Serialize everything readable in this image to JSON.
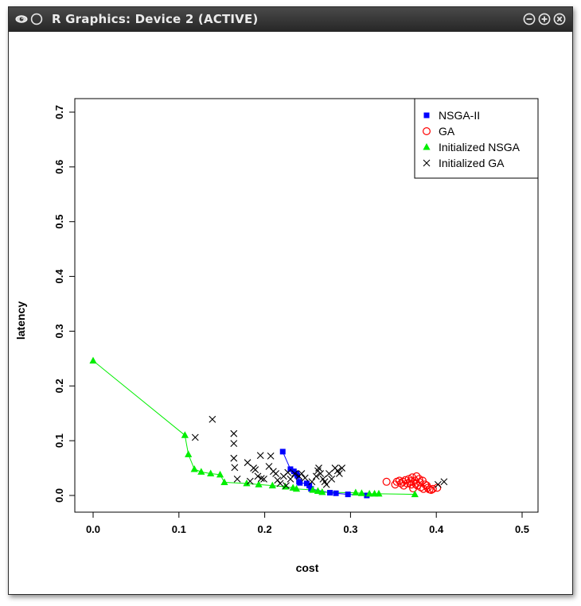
{
  "window": {
    "title": "R Graphics: Device 2 (ACTIVE)",
    "icons": [
      "app-eye-icon",
      "circle-icon",
      "minimize-icon",
      "maximize-icon",
      "close-icon"
    ]
  },
  "chart_data": {
    "type": "scatter",
    "title": "",
    "xlabel": "cost",
    "ylabel": "latency",
    "xlim": [
      0.0,
      0.5
    ],
    "ylim": [
      0.0,
      0.7
    ],
    "x_ticks": [
      "0.0",
      "0.1",
      "0.2",
      "0.3",
      "0.4",
      "0.5"
    ],
    "y_ticks": [
      "0.0",
      "0.1",
      "0.2",
      "0.3",
      "0.4",
      "0.5",
      "0.6",
      "0.7"
    ],
    "grid": false,
    "legend_position": "top-right",
    "series": [
      {
        "name": "NSGA-II",
        "marker": "filled-square",
        "color": "#0000ff",
        "connected": true,
        "points": [
          [
            0.221,
            0.08
          ],
          [
            0.23,
            0.048
          ],
          [
            0.234,
            0.044
          ],
          [
            0.237,
            0.04
          ],
          [
            0.238,
            0.036
          ],
          [
            0.24,
            0.025
          ],
          [
            0.241,
            0.023
          ],
          [
            0.249,
            0.022
          ],
          [
            0.252,
            0.018
          ],
          [
            0.254,
            0.012
          ],
          [
            0.276,
            0.005
          ],
          [
            0.283,
            0.004
          ],
          [
            0.297,
            0.002
          ],
          [
            0.319,
            0.0
          ]
        ]
      },
      {
        "name": "GA",
        "marker": "open-circle",
        "color": "#ff0000",
        "connected": false,
        "points": [
          [
            0.342,
            0.025
          ],
          [
            0.352,
            0.02
          ],
          [
            0.354,
            0.025
          ],
          [
            0.357,
            0.027
          ],
          [
            0.359,
            0.022
          ],
          [
            0.361,
            0.025
          ],
          [
            0.362,
            0.018
          ],
          [
            0.364,
            0.028
          ],
          [
            0.366,
            0.022
          ],
          [
            0.368,
            0.03
          ],
          [
            0.37,
            0.026
          ],
          [
            0.371,
            0.02
          ],
          [
            0.372,
            0.033
          ],
          [
            0.373,
            0.013
          ],
          [
            0.375,
            0.027
          ],
          [
            0.376,
            0.021
          ],
          [
            0.377,
            0.035
          ],
          [
            0.378,
            0.018
          ],
          [
            0.38,
            0.03
          ],
          [
            0.381,
            0.024
          ],
          [
            0.382,
            0.015
          ],
          [
            0.384,
            0.027
          ],
          [
            0.385,
            0.012
          ],
          [
            0.387,
            0.02
          ],
          [
            0.389,
            0.018
          ],
          [
            0.39,
            0.014
          ],
          [
            0.392,
            0.011
          ],
          [
            0.394,
            0.01
          ],
          [
            0.396,
            0.012
          ],
          [
            0.401,
            0.014
          ]
        ]
      },
      {
        "name": "Initialized NSGA",
        "marker": "filled-triangle",
        "color": "#00ee00",
        "connected": true,
        "points": [
          [
            0.0,
            0.246
          ],
          [
            0.107,
            0.11
          ],
          [
            0.111,
            0.075
          ],
          [
            0.118,
            0.048
          ],
          [
            0.126,
            0.043
          ],
          [
            0.137,
            0.04
          ],
          [
            0.148,
            0.038
          ],
          [
            0.153,
            0.024
          ],
          [
            0.179,
            0.022
          ],
          [
            0.193,
            0.02
          ],
          [
            0.209,
            0.018
          ],
          [
            0.224,
            0.016
          ],
          [
            0.233,
            0.014
          ],
          [
            0.237,
            0.012
          ],
          [
            0.256,
            0.01
          ],
          [
            0.262,
            0.008
          ],
          [
            0.267,
            0.006
          ],
          [
            0.306,
            0.005
          ],
          [
            0.313,
            0.004
          ],
          [
            0.322,
            0.003
          ],
          [
            0.328,
            0.003
          ],
          [
            0.333,
            0.003
          ],
          [
            0.375,
            0.002
          ]
        ]
      },
      {
        "name": "Initialized GA",
        "marker": "x",
        "color": "#000000",
        "connected": false,
        "points": [
          [
            0.119,
            0.106
          ],
          [
            0.139,
            0.139
          ],
          [
            0.164,
            0.113
          ],
          [
            0.164,
            0.095
          ],
          [
            0.164,
            0.068
          ],
          [
            0.165,
            0.051
          ],
          [
            0.168,
            0.03
          ],
          [
            0.18,
            0.06
          ],
          [
            0.183,
            0.026
          ],
          [
            0.187,
            0.05
          ],
          [
            0.189,
            0.047
          ],
          [
            0.192,
            0.035
          ],
          [
            0.195,
            0.073
          ],
          [
            0.196,
            0.031
          ],
          [
            0.199,
            0.03
          ],
          [
            0.205,
            0.053
          ],
          [
            0.207,
            0.072
          ],
          [
            0.21,
            0.044
          ],
          [
            0.213,
            0.04
          ],
          [
            0.215,
            0.028
          ],
          [
            0.218,
            0.022
          ],
          [
            0.222,
            0.035
          ],
          [
            0.225,
            0.018
          ],
          [
            0.227,
            0.042
          ],
          [
            0.23,
            0.03
          ],
          [
            0.235,
            0.04
          ],
          [
            0.24,
            0.035
          ],
          [
            0.243,
            0.04
          ],
          [
            0.247,
            0.032
          ],
          [
            0.255,
            0.025
          ],
          [
            0.26,
            0.035
          ],
          [
            0.262,
            0.045
          ],
          [
            0.263,
            0.05
          ],
          [
            0.265,
            0.04
          ],
          [
            0.268,
            0.03
          ],
          [
            0.27,
            0.025
          ],
          [
            0.272,
            0.02
          ],
          [
            0.275,
            0.04
          ],
          [
            0.278,
            0.03
          ],
          [
            0.282,
            0.05
          ],
          [
            0.285,
            0.045
          ],
          [
            0.287,
            0.04
          ],
          [
            0.29,
            0.05
          ],
          [
            0.402,
            0.02
          ],
          [
            0.409,
            0.025
          ]
        ]
      }
    ]
  }
}
